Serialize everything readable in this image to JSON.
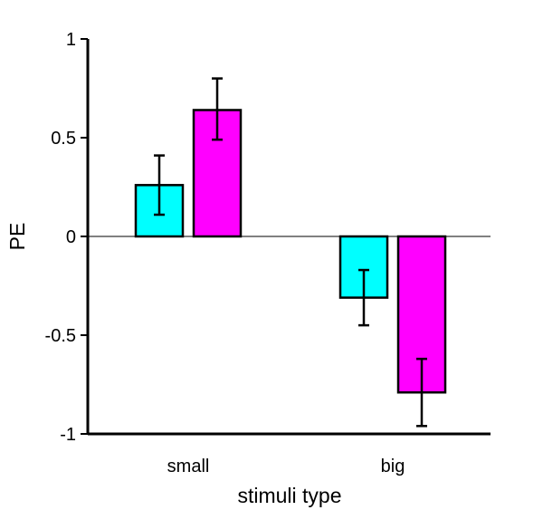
{
  "chart_data": {
    "type": "bar",
    "title": "",
    "xlabel": "stimuli type",
    "ylabel": "PE",
    "categories": [
      "small",
      "big"
    ],
    "ylim": [
      -1,
      1
    ],
    "yticks": [
      1,
      0.5,
      0,
      -0.5,
      -1
    ],
    "ytick_labels": [
      "1",
      "0.5",
      "0",
      "-0.5",
      "-1"
    ],
    "grid": false,
    "legend": "none",
    "series": [
      {
        "color": "#00FFFF",
        "values": [
          0.26,
          -0.31
        ],
        "error_low": [
          0.11,
          -0.45
        ],
        "error_high": [
          0.41,
          -0.17
        ]
      },
      {
        "color": "#FF00FF",
        "values": [
          0.64,
          -0.79
        ],
        "error_low": [
          0.49,
          -0.96
        ],
        "error_high": [
          0.8,
          -0.62
        ]
      }
    ]
  }
}
